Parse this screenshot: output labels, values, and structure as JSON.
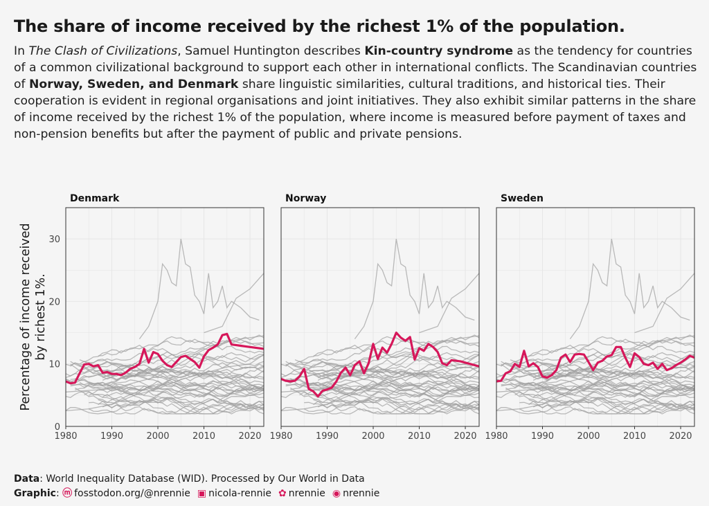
{
  "title": "The share of income received by the richest 1% of the population.",
  "subtitle": {
    "p1": "In ",
    "book": "The Clash of Civilizations",
    "p2": ", Samuel Huntington describes ",
    "term": "Kin-country syndrome",
    "p3": " as the tendency for countries of a common civilizational background to support each other in international conflicts. The Scandinavian countries of ",
    "countries": "Norway, Sweden, and Denmark",
    "p4": " share linguistic similarities, cultural traditions, and historical ties. Their cooperation is evident in regional organisations and joint initiatives. They also exhibit similar patterns in the share of income received by the richest 1% of the population, where income is measured before payment of taxes and non-pension benefits but after the payment of public and private pensions."
  },
  "caption": {
    "data_label": "Data",
    "data_text": ": World Inequality Database (WID). Processed by Our World in Data",
    "graphic_label": "Graphic",
    "mastodon": "fosstodon.org/@nrennie",
    "linkedin": "nicola-rennie",
    "bluesky": "nrennie",
    "github": "nrennie"
  },
  "colors": {
    "highlight": "#d6175a",
    "background_lines": "#9e9e9e",
    "background": "#f5f5f5"
  },
  "chart_data": {
    "type": "line",
    "ylabel": "Percentage of income received by richest 1%.",
    "xlabel": "",
    "xlim": [
      1980,
      2023
    ],
    "ylim": [
      0,
      35
    ],
    "x_ticks": [
      1980,
      1990,
      2000,
      2010,
      2020
    ],
    "y_ticks": [
      0,
      10,
      20,
      30
    ],
    "grid": true,
    "panels": [
      "Denmark",
      "Norway",
      "Sweden"
    ],
    "x": [
      1980,
      1981,
      1982,
      1983,
      1984,
      1985,
      1986,
      1987,
      1988,
      1989,
      1990,
      1991,
      1992,
      1993,
      1994,
      1995,
      1996,
      1997,
      1998,
      1999,
      2000,
      2001,
      2002,
      2003,
      2004,
      2005,
      2006,
      2007,
      2008,
      2009,
      2010,
      2011,
      2012,
      2013,
      2014,
      2015,
      2016,
      2017,
      2018,
      2019,
      2020,
      2021,
      2022,
      2023
    ],
    "series": [
      {
        "name": "Denmark",
        "values": [
          7.2,
          6.9,
          7.0,
          8.5,
          9.9,
          10.0,
          9.6,
          9.8,
          8.6,
          8.7,
          8.4,
          8.4,
          8.2,
          8.6,
          9.2,
          9.5,
          10.0,
          12.4,
          10.2,
          11.9,
          11.6,
          10.5,
          9.8,
          9.5,
          10.3,
          11.1,
          11.3,
          10.8,
          10.3,
          9.4,
          11.2,
          12.2,
          12.6,
          13.1,
          14.6,
          14.8,
          13.1,
          13.0,
          12.9,
          12.8,
          12.7,
          12.6,
          12.5,
          12.4
        ]
      },
      {
        "name": "Norway",
        "values": [
          7.6,
          7.3,
          7.2,
          7.3,
          8.0,
          9.2,
          6.0,
          5.6,
          4.8,
          5.7,
          5.9,
          6.2,
          7.2,
          8.6,
          9.4,
          8.2,
          9.8,
          10.4,
          8.5,
          10.1,
          13.2,
          10.8,
          12.6,
          11.8,
          13.2,
          15.0,
          14.2,
          13.7,
          14.3,
          10.7,
          12.5,
          12.1,
          13.2,
          12.7,
          11.9,
          10.1,
          9.8,
          10.6,
          10.5,
          10.4,
          10.2,
          10.0,
          9.8,
          9.6
        ]
      },
      {
        "name": "Sweden",
        "values": [
          7.2,
          7.3,
          8.5,
          8.8,
          10.0,
          9.5,
          12.1,
          9.6,
          10.1,
          9.5,
          8.0,
          7.8,
          8.2,
          9.0,
          11.0,
          11.5,
          10.3,
          11.5,
          11.6,
          11.5,
          10.3,
          9.0,
          10.2,
          10.5,
          11.2,
          11.4,
          12.7,
          12.7,
          11.0,
          9.5,
          11.7,
          11.1,
          10.0,
          9.8,
          10.2,
          9.2,
          10.0,
          9.0,
          9.3,
          9.8,
          10.2,
          10.7,
          11.3,
          11.0
        ]
      }
    ]
  }
}
